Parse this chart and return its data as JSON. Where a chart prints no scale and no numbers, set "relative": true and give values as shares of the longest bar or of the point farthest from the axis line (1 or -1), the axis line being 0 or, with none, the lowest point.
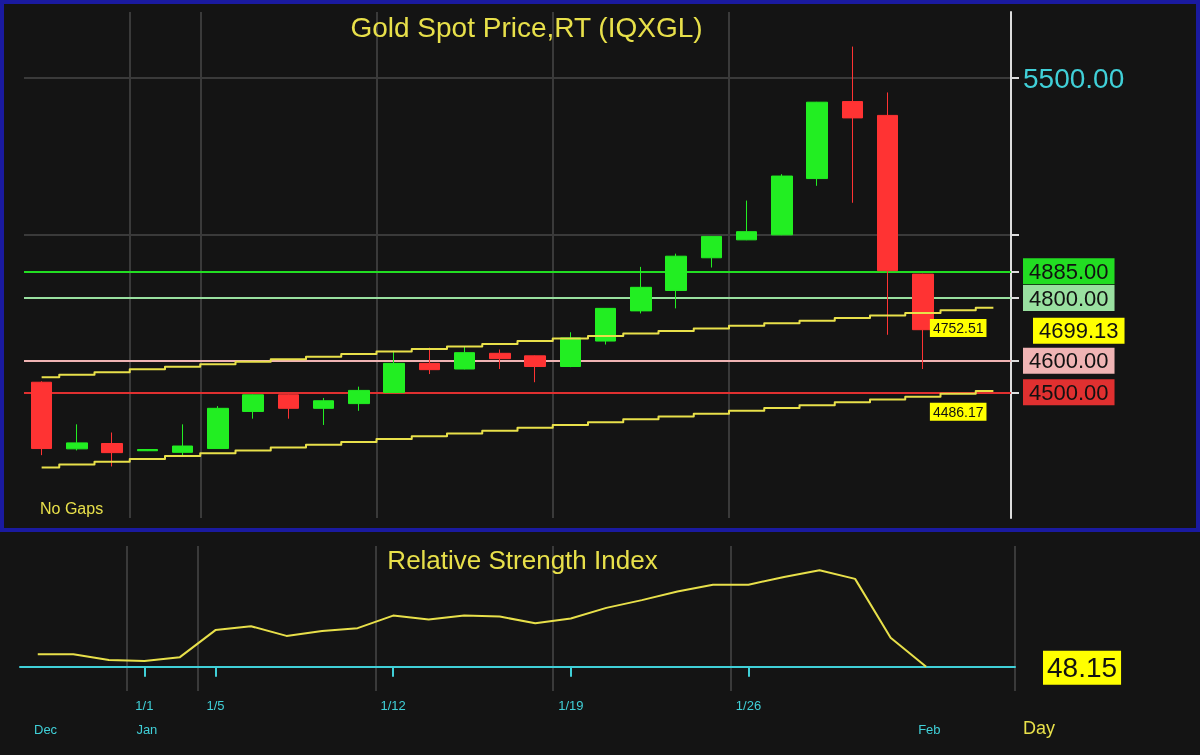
{
  "chart_data": [
    {
      "type": "candlestick",
      "title": "Gold Spot Price,RT (IQXGL)",
      "categories": [
        null,
        null,
        null,
        null,
        null,
        null,
        null,
        null,
        null,
        null,
        null,
        null,
        null,
        null,
        null,
        null,
        null,
        null,
        null,
        null,
        null,
        null,
        null,
        null,
        null,
        null,
        null,
        null
      ],
      "ohlc": [
        [
          4532,
          4535,
          4300,
          4321
        ],
        [
          4320,
          4398,
          4315,
          4339
        ],
        [
          4337,
          4372,
          4264,
          4308
        ],
        [
          4314,
          4318,
          4313,
          4318
        ],
        [
          4309,
          4398,
          4297,
          4329
        ],
        [
          4321,
          4456,
          4320,
          4449
        ],
        [
          4439,
          4493,
          4416,
          4492
        ],
        [
          4492,
          4493,
          4416,
          4449
        ],
        [
          4449,
          4482,
          4396,
          4473
        ],
        [
          4464,
          4518,
          4441,
          4506
        ],
        [
          4499,
          4632,
          4498,
          4592
        ],
        [
          4592,
          4642,
          4558,
          4572
        ],
        [
          4574,
          4647,
          4573,
          4626
        ],
        [
          4624,
          4636,
          4574,
          4607
        ],
        [
          4616,
          4617,
          4532,
          4582
        ],
        [
          4582,
          4691,
          4580,
          4673
        ],
        [
          4663,
          4768,
          4652,
          4767
        ],
        [
          4759,
          4899,
          4751,
          4834
        ],
        [
          4824,
          4941,
          4767,
          4933
        ],
        [
          4928,
          4997,
          4897,
          4996
        ],
        [
          4985,
          5110,
          4984,
          5011
        ],
        [
          5001,
          5194,
          5000,
          5188
        ],
        [
          5180,
          5424,
          5157,
          5423
        ],
        [
          5425,
          5600,
          5103,
          5373
        ],
        [
          5381,
          5454,
          4683,
          4887
        ],
        [
          4876,
          4877,
          4574,
          4699.13
        ],
        null,
        null
      ],
      "colors": [
        "#ff3333",
        "#22ee22",
        "#ff3333",
        "#22ee22",
        "#22ee22",
        "#22ee22",
        "#22ee22",
        "#ff3333",
        "#22ee22",
        "#22ee22",
        "#22ee22",
        "#ff3333",
        "#22ee22",
        "#ff3333",
        "#ff3333",
        "#22ee22",
        "#22ee22",
        "#22ee22",
        "#22ee22",
        "#22ee22",
        "#22ee22",
        "#22ee22",
        "#22ee22",
        "#ff3333",
        "#ff3333",
        "#ff3333",
        null,
        null
      ],
      "series": [
        {
          "type": "step",
          "color": "#e8e04a",
          "values": [
            4548,
            4556,
            4564,
            4573,
            4581,
            4589,
            4597,
            4605,
            4613,
            4622,
            4630,
            4638,
            4646,
            4654,
            4663,
            4671,
            4679,
            4687,
            4695,
            4703,
            4712,
            4720,
            4728,
            4736,
            4744,
            4752.51,
            4761,
            4769
          ],
          "value_labels": [
            null,
            null,
            null,
            null,
            null,
            null,
            null,
            null,
            null,
            null,
            null,
            null,
            null,
            null,
            null,
            null,
            null,
            null,
            null,
            null,
            null,
            null,
            null,
            null,
            null,
            "4752.51",
            null,
            null
          ]
        },
        {
          "type": "step",
          "color": "#e8e04a",
          "values": [
            4261,
            4270,
            4279,
            4288,
            4297,
            4306,
            4315,
            4324,
            4333,
            4342,
            4351,
            4360,
            4369,
            4378,
            4387,
            4396,
            4405,
            4414,
            4423,
            4432,
            4441,
            4450,
            4459,
            4468,
            4477,
            4486.17,
            4495,
            4504
          ],
          "value_labels": [
            null,
            null,
            null,
            null,
            null,
            null,
            null,
            null,
            null,
            null,
            null,
            null,
            null,
            null,
            null,
            null,
            null,
            null,
            null,
            null,
            null,
            null,
            null,
            null,
            null,
            "4486.17",
            null,
            null
          ]
        }
      ],
      "ref_lines": [
        {
          "axis": "y",
          "value": 4885,
          "color": "#22dd22"
        },
        {
          "axis": "y",
          "value": 4800,
          "color": "#99e0a0"
        },
        {
          "axis": "y",
          "value": 4600,
          "color": "#f0b4b4"
        },
        {
          "axis": "y",
          "value": 4500,
          "color": "#e03030"
        }
      ],
      "annotations": [
        "No Gaps",
        "4699.13"
      ],
      "ylim": [
        4100,
        5710
      ],
      "yticks": [
        {
          "value": 4500,
          "label": "4500.00"
        },
        {
          "value": 4600,
          "label": "4600.00"
        },
        {
          "value": 4800,
          "label": "4800.00"
        },
        {
          "value": 4885,
          "label": "4885.00"
        },
        {
          "value": 5000,
          "label": null
        },
        {
          "value": 5500,
          "label": "5500.00"
        }
      ],
      "grid": true,
      "marker": "none",
      "tick_labels": "y"
    },
    {
      "type": "line",
      "title": "Relative Strength Index",
      "relative": true,
      "xlabel": "Day",
      "categories": [
        null,
        null,
        null,
        "1/1",
        null,
        "1/5",
        null,
        null,
        null,
        null,
        "1/12",
        null,
        null,
        null,
        null,
        "1/19",
        null,
        null,
        null,
        null,
        "1/26",
        null,
        null,
        null,
        null,
        null,
        null,
        null
      ],
      "series": [
        {
          "color": "#e8e04a",
          "values": [
            0.13,
            0.13,
            0.07,
            0.06,
            0.1,
            0.38,
            0.42,
            0.32,
            0.37,
            0.4,
            0.53,
            0.49,
            0.53,
            0.52,
            0.45,
            0.5,
            0.61,
            0.69,
            0.78,
            0.85,
            0.85,
            0.93,
            1,
            0.91,
            0.3,
            0,
            null,
            null
          ]
        }
      ],
      "annotations": [
        "Dec",
        "Jan",
        "Feb",
        "48.15"
      ],
      "grid": true,
      "marker": "none",
      "tick_labels": "x"
    }
  ]
}
